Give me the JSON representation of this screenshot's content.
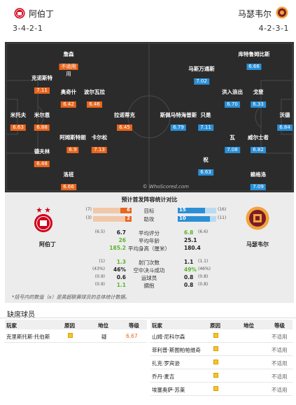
{
  "header": {
    "home_name": "阿伯丁",
    "home_formation": "3-4-2-1",
    "away_name": "马瑟韦尔",
    "away_formation": "4-2-3-1",
    "home_color": "#e8661e",
    "away_color": "#2b8fd6"
  },
  "pitch": {
    "watermark": "© WhoScored.com",
    "home_players": [
      {
        "name": "詹森",
        "rating": "不适用"
      },
      {
        "name": "克诺斯特",
        "rating": "7.11"
      },
      {
        "name": "奥奇什",
        "rating": "6.42"
      },
      {
        "name": "波尔瓦拉",
        "rating": "6.46"
      },
      {
        "name": "米托夫",
        "rating": "6.63"
      },
      {
        "name": "米尔恩",
        "rating": "6.88"
      },
      {
        "name": "拉诺蒂克",
        "rating": "6.45"
      },
      {
        "name": "阿姆斯特朗",
        "rating": "6.9"
      },
      {
        "name": "卡尔松",
        "rating": "7.13"
      },
      {
        "name": "德夫林",
        "rating": "6.48"
      },
      {
        "name": "洛班",
        "rating": "6.66"
      }
    ],
    "away_players": [
      {
        "name": "库特鲁姆比斯",
        "rating": "6.66"
      },
      {
        "name": "马斯万通斯",
        "rating": "7.02"
      },
      {
        "name": "洪入浪出",
        "rating": "6.70"
      },
      {
        "name": "戈登",
        "rating": "6.33"
      },
      {
        "name": "斯佩马特海普斯",
        "rating": "6.79"
      },
      {
        "name": "只是",
        "rating": "7.11"
      },
      {
        "name": "沃德",
        "rating": "6.84"
      },
      {
        "name": "瓦",
        "rating": "7.08"
      },
      {
        "name": "威尔士者",
        "rating": "6.82"
      },
      {
        "name": "祝",
        "rating": "6.63"
      },
      {
        "name": "赖格洛",
        "rating": "7.09"
      }
    ],
    "home_extra": "用"
  },
  "compare": {
    "title": "预计首发阵容统计对比",
    "home_name": "阿伯丁",
    "away_name": "马瑟韦尔",
    "bar_rows": [
      {
        "label": "目标",
        "home": "6",
        "home_sub": "(7)",
        "away": "15",
        "away_sub": "(16)",
        "home_share": 0.29,
        "away_share": 0.71
      },
      {
        "label": "助攻",
        "home": "2",
        "home_sub": "(3)",
        "away": "10",
        "away_sub": "(11)",
        "home_share": 0.17,
        "away_share": 0.83
      }
    ],
    "rows1": [
      {
        "label": "平均评分",
        "home": "6.7",
        "home_sub": "(6.5)",
        "away": "6.8",
        "away_sub": "(6.6)",
        "hg": false,
        "ag": true
      },
      {
        "label": "平均年龄",
        "home": "26",
        "home_sub": "",
        "away": "25.1",
        "away_sub": "",
        "hg": true,
        "ag": false
      },
      {
        "label": "平均身高（厘米）",
        "home": "185.2",
        "home_sub": "",
        "away": "180.4",
        "away_sub": "",
        "hg": true,
        "ag": false
      }
    ],
    "rows2": [
      {
        "label": "射门次数",
        "home": "1.3",
        "home_sub": "(1)",
        "away": "1.1",
        "away_sub": "(1.1)",
        "hg": true,
        "ag": false
      },
      {
        "label": "空中决斗成功",
        "home": "46%",
        "home_sub": "(43%)",
        "away": "49%",
        "away_sub": "(46%)",
        "hg": false,
        "ag": true
      },
      {
        "label": "运球员",
        "home": "0.6",
        "home_sub": "(0.9)",
        "away": "0.8",
        "away_sub": "(0.8)",
        "hg": false,
        "ag": false
      },
      {
        "label": "摘抱",
        "home": "1.1",
        "home_sub": "(0.9)",
        "away": "0.8",
        "away_sub": "(0.8)",
        "hg": true,
        "ag": false
      }
    ],
    "footnote": "*括号内的数值（x）是英超联赛球员的总体统计数据。"
  },
  "missing": {
    "title": "缺席球员",
    "headers": {
      "player": "玩家",
      "reason": "原因",
      "status": "地位",
      "rating": "等级"
    },
    "home": [
      {
        "player": "克里斯托斯·托伯斯",
        "status": "疑",
        "rating": "6.67"
      }
    ],
    "away": [
      {
        "player": "山姆·尼科尔森",
        "status": "",
        "rating": "不适用"
      },
      {
        "player": "菲利普·斯图帕帕维奇",
        "status": "",
        "rating": "不适用"
      },
      {
        "player": "扎克·罗宾逊",
        "status": "",
        "rating": "不适用"
      },
      {
        "player": "乔丹·麦吉",
        "status": "",
        "rating": "不适用"
      },
      {
        "player": "埃塞奥萨·苏莱",
        "status": "",
        "rating": "不适用"
      }
    ]
  }
}
